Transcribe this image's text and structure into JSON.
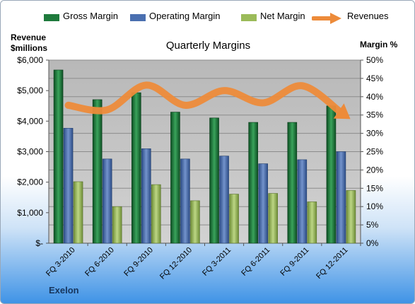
{
  "legend": {
    "gross": "Gross Margin",
    "operating": "Operating Margin",
    "net": "Net Margin",
    "revenues": "Revenues"
  },
  "axis_left_title_line1": "Revenue",
  "axis_left_title_line2": "$millions",
  "axis_right_title": "Margin %",
  "company": "Exelon",
  "colors": {
    "gross": "#1e7a3c",
    "operating": "#4a6fb0",
    "net": "#9bbb59",
    "revenues": "#ed8b3a",
    "plot_bg": "#c4c4c4"
  },
  "chart_data": {
    "type": "bar",
    "title": "Quarterly Margins",
    "categories": [
      "FQ 3-2010",
      "FQ 6-2010",
      "FQ 9-2010",
      "FQ 12-2010",
      "FQ 3-2011",
      "FQ 6-2011",
      "FQ 9-2011",
      "FQ 12-2011"
    ],
    "y_left": {
      "label": "Revenue $millions",
      "ylim": [
        0,
        6000
      ],
      "ticks": [
        "$-",
        "$1,000",
        "$2,000",
        "$3,000",
        "$4,000",
        "$5,000",
        "$6,000"
      ]
    },
    "y_right": {
      "label": "Margin %",
      "ylim": [
        0,
        50
      ],
      "ticks": [
        "0%",
        "5%",
        "10%",
        "15%",
        "20%",
        "25%",
        "30%",
        "35%",
        "40%",
        "45%",
        "50%"
      ]
    },
    "series": [
      {
        "name": "Gross Margin",
        "axis": "right",
        "values": [
          47.3,
          39.2,
          41.1,
          35.8,
          34.2,
          33.0,
          33.0,
          37.5
        ]
      },
      {
        "name": "Operating Margin",
        "axis": "right",
        "values": [
          31.4,
          23.0,
          25.8,
          23.0,
          23.8,
          21.7,
          22.8,
          25.0
        ]
      },
      {
        "name": "Net Margin",
        "axis": "right",
        "values": [
          16.8,
          10.0,
          16.0,
          11.6,
          13.4,
          13.6,
          11.3,
          14.4
        ]
      },
      {
        "name": "Revenues",
        "axis": "left",
        "type": "line",
        "values": [
          4520,
          4370,
          5180,
          4520,
          5000,
          4600,
          5160,
          4280
        ]
      }
    ],
    "grid": true,
    "legend_position": "top"
  }
}
